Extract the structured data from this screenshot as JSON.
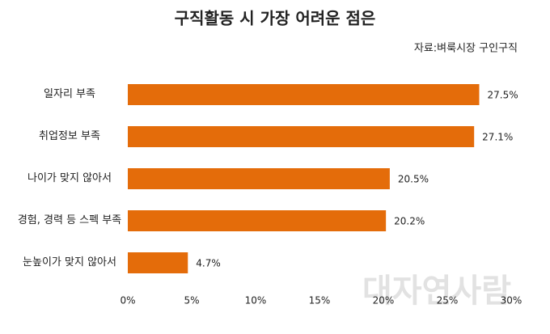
{
  "chart_data": {
    "type": "hbar",
    "title": "구직활동 시 가장 어려운 점은",
    "subtitle": "자료:벼룩시장 구인구직",
    "categories": [
      "일자리 부족",
      "취업정보 부족",
      "나이가 맞지 않아서",
      "경험, 경력 등 스펙 부족",
      "눈높이가 맞지 않아서"
    ],
    "values": [
      27.5,
      27.1,
      20.5,
      20.2,
      4.7
    ],
    "value_labels": [
      "27.5%",
      "27.1%",
      "20.5%",
      "20.2%",
      "4.7%"
    ],
    "color": "#e46c0a",
    "xlim": [
      0,
      30
    ],
    "xticks": [
      {
        "value": 0,
        "label": "0%"
      },
      {
        "value": 5,
        "label": "5%"
      },
      {
        "value": 10,
        "label": "10%"
      },
      {
        "value": 15,
        "label": "15%"
      },
      {
        "value": 20,
        "label": "20%"
      },
      {
        "value": 25,
        "label": "25%"
      },
      {
        "value": 30,
        "label": "30%"
      }
    ],
    "watermark": "대자연사람"
  }
}
